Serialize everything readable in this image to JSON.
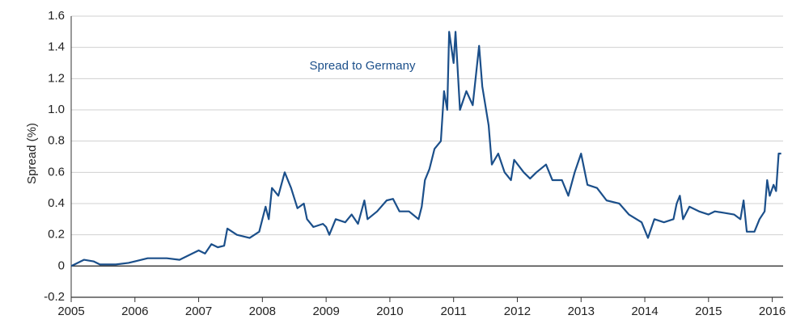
{
  "chart_data": {
    "type": "line",
    "y_label": "Spread (%)",
    "xlim": [
      2005,
      2016.17
    ],
    "xticks": [
      2005,
      2006,
      2007,
      2008,
      2009,
      2010,
      2011,
      2012,
      2013,
      2014,
      2015,
      2016
    ],
    "ylim": [
      -0.2,
      1.6
    ],
    "yticks": [
      -0.2,
      0,
      0.2,
      0.4,
      0.6,
      0.8,
      {
        "value": 1,
        "label": "1.0"
      },
      1.2,
      1.4,
      1.6
    ],
    "grid": true,
    "x": [
      2005.0,
      2005.1,
      2005.2,
      2005.35,
      2005.45,
      2005.7,
      2005.9,
      2006.0,
      2006.2,
      2006.5,
      2006.7,
      2006.9,
      2007.0,
      2007.1,
      2007.2,
      2007.3,
      2007.4,
      2007.45,
      2007.6,
      2007.8,
      2007.95,
      2008.0,
      2008.05,
      2008.1,
      2008.15,
      2008.25,
      2008.35,
      2008.45,
      2008.55,
      2008.65,
      2008.7,
      2008.8,
      2008.95,
      2009.0,
      2009.05,
      2009.15,
      2009.3,
      2009.4,
      2009.5,
      2009.6,
      2009.65,
      2009.8,
      2009.95,
      2010.05,
      2010.15,
      2010.3,
      2010.45,
      2010.5,
      2010.55,
      2010.62,
      2010.7,
      2010.8,
      2010.85,
      2010.9,
      2010.93,
      2011.0,
      2011.03,
      2011.1,
      2011.2,
      2011.3,
      2011.4,
      2011.45,
      2011.55,
      2011.6,
      2011.7,
      2011.8,
      2011.9,
      2011.95,
      2012.1,
      2012.2,
      2012.3,
      2012.45,
      2012.55,
      2012.7,
      2012.8,
      2012.9,
      2013.0,
      2013.1,
      2013.25,
      2013.4,
      2013.6,
      2013.75,
      2013.95,
      2014.05,
      2014.15,
      2014.3,
      2014.45,
      2014.5,
      2014.55,
      2014.6,
      2014.7,
      2014.85,
      2015.0,
      2015.1,
      2015.25,
      2015.4,
      2015.5,
      2015.55,
      2015.6,
      2015.72,
      2015.8,
      2015.88,
      2015.92,
      2015.96,
      2016.02,
      2016.06,
      2016.1,
      2016.14
    ],
    "series": [
      {
        "name": "Spread to Germany",
        "color": "#1b4f8a",
        "values": [
          0.0,
          0.02,
          0.04,
          0.03,
          0.01,
          0.01,
          0.02,
          0.03,
          0.05,
          0.05,
          0.04,
          0.08,
          0.1,
          0.08,
          0.14,
          0.12,
          0.13,
          0.24,
          0.2,
          0.18,
          0.22,
          0.3,
          0.38,
          0.3,
          0.5,
          0.45,
          0.6,
          0.5,
          0.37,
          0.4,
          0.3,
          0.25,
          0.27,
          0.25,
          0.2,
          0.3,
          0.28,
          0.33,
          0.27,
          0.42,
          0.3,
          0.35,
          0.42,
          0.43,
          0.35,
          0.35,
          0.3,
          0.38,
          0.55,
          0.62,
          0.75,
          0.8,
          1.12,
          1.0,
          1.5,
          1.3,
          1.5,
          1.0,
          1.12,
          1.03,
          1.41,
          1.15,
          0.9,
          0.65,
          0.72,
          0.6,
          0.55,
          0.68,
          0.6,
          0.56,
          0.6,
          0.65,
          0.55,
          0.55,
          0.45,
          0.6,
          0.72,
          0.52,
          0.5,
          0.42,
          0.4,
          0.33,
          0.28,
          0.18,
          0.3,
          0.28,
          0.3,
          0.4,
          0.45,
          0.3,
          0.38,
          0.35,
          0.33,
          0.35,
          0.34,
          0.33,
          0.3,
          0.42,
          0.22,
          0.22,
          0.3,
          0.35,
          0.55,
          0.45,
          0.52,
          0.48,
          0.72,
          0.72
        ]
      }
    ]
  }
}
